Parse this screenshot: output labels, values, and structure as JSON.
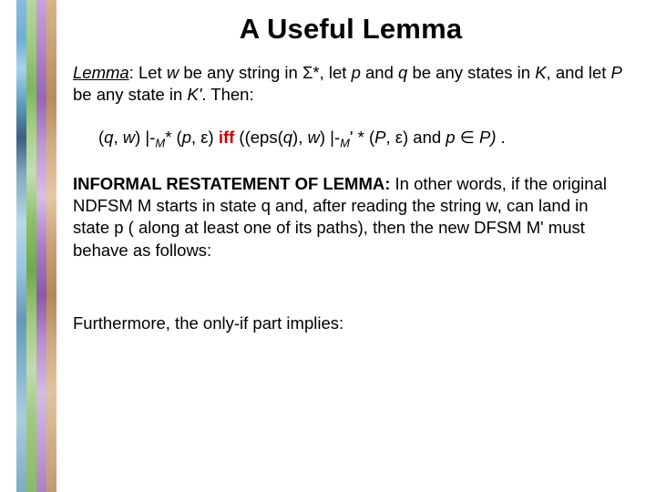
{
  "title": "A Useful Lemma",
  "lemma_label": "Lemma",
  "p1_a": ":  Let ",
  "p1_w": "w",
  "p1_b": " be any string in ",
  "p1_sigma": "Σ",
  "p1_c": "*, let ",
  "p1_p": "p",
  "p1_d": " and ",
  "p1_q": "q",
  "p1_e": " be any states in ",
  "p1_K": "K",
  "p1_f": ", and let ",
  "p1_P": "P",
  "p1_g": " be any state in ",
  "p1_Kpr": "K'",
  "p1_h": ".  Then:",
  "f_a": "(",
  "f_q": "q",
  "f_b": ", ",
  "f_w": "w",
  "f_c": ") |-",
  "f_M": "M",
  "f_d": "* (",
  "f_p": "p",
  "f_e": ", ",
  "f_eps1": "ε",
  "f_f": ") ",
  "f_iff": "iff",
  "f_g": " ((eps(",
  "f_q2": "q",
  "f_h": "), ",
  "f_w2": "w",
  "f_i": ") |-",
  "f_M2": "M",
  "f_prime": "' ",
  "f_j": "* (",
  "f_P2": "P",
  "f_k": ", ",
  "f_eps2": "ε",
  "f_l": ") and ",
  "f_p2": "p",
  "f_m": " ∈ ",
  "f_P3": "P)",
  "f_n": "   .",
  "informal_label": "INFORMAL RESTATEMENT OF LEMMA:",
  "informal_text": "  In other words, if the original NDFSM M starts in state q and, after reading the string w, can land in state p ( along at least one of its paths), then the new DFSM M' must behave as follows:",
  "furthermore": "Furthermore, the only-if part implies:",
  "decoration": {
    "strips": [
      "linear-gradient(180deg,#88bde0 0%,#6faed5 8%,#a8d3ec 14%,#5f9ebf 21%,#3e5e7e 28%,#7fa5bf 35%,#b7d9e8 45%,#96c4dc 55%,#6598b6 65%,#84b5cf 75%,#a8cde0 85%,#7eabc6 100%)",
      "linear-gradient(180deg,#b6d6a0 0%,#9bc87f 10%,#7fb55f 18%,#a3cf83 26%,#c3dfae 35%,#8cc068 45%,#6faa4a 55%,#9ecb7d 65%,#c1dcab 75%,#a0ca80 85%,#88bb66 100%)",
      "linear-gradient(180deg,#c8a4d4 0%,#b286c5 10%,#9668b1 20%,#c09bd0 30%,#d9bee3 40%,#a97fc1 50%,#8a5ba6 60%,#b893cc 70%,#d5bbe0 80%,#c0a0d2 90%,#a884c0 100%)",
      "linear-gradient(180deg,#d8b48c 0%,#c9a074 10%,#b88b5d 20%,#d5ae86 30%,#e4c8a4 40%,#caa076 50%,#b48858 60%,#d0aa82 70%,#e0c49e 80%,#d2ae88 90%,#c29a72 100%)"
    ]
  }
}
